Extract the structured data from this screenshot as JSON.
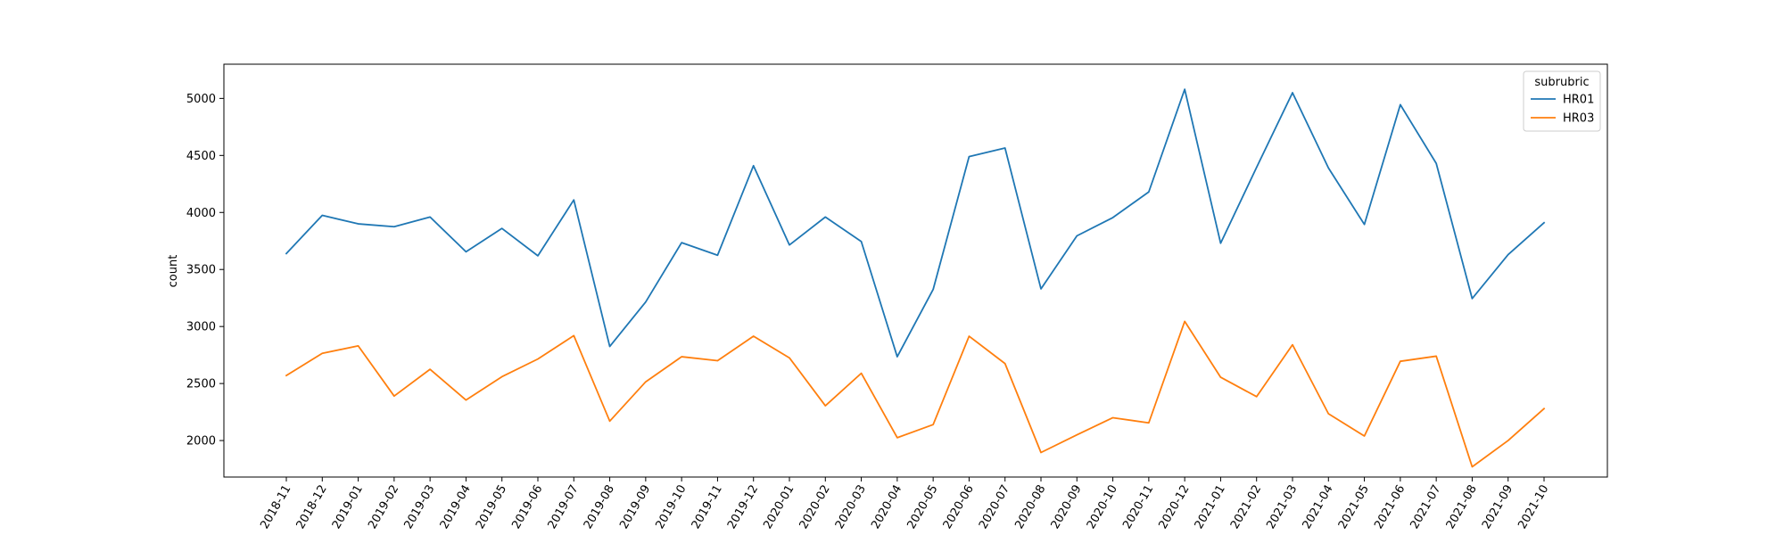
{
  "chart_data": {
    "type": "line",
    "title": "",
    "xlabel": "",
    "ylabel": "count",
    "categories": [
      "2018-11",
      "2018-12",
      "2019-01",
      "2019-02",
      "2019-03",
      "2019-04",
      "2019-05",
      "2019-06",
      "2019-07",
      "2019-08",
      "2019-09",
      "2019-10",
      "2019-11",
      "2019-12",
      "2020-01",
      "2020-02",
      "2020-03",
      "2020-04",
      "2020-05",
      "2020-06",
      "2020-07",
      "2020-08",
      "2020-09",
      "2020-10",
      "2020-11",
      "2020-12",
      "2021-01",
      "2021-02",
      "2021-03",
      "2021-04",
      "2021-05",
      "2021-06",
      "2021-07",
      "2021-08",
      "2021-09",
      "2021-10"
    ],
    "series": [
      {
        "name": "HR01",
        "color": "#1f77b4",
        "values": [
          3640,
          3975,
          3900,
          3875,
          3960,
          3655,
          3860,
          3620,
          4110,
          2825,
          3215,
          3735,
          3625,
          4410,
          3715,
          3960,
          3745,
          2735,
          3325,
          4490,
          4565,
          3330,
          3795,
          3955,
          4180,
          5080,
          3730,
          4395,
          5050,
          4390,
          3895,
          4945,
          4430,
          3245,
          3630,
          3910
        ]
      },
      {
        "name": "HR03",
        "color": "#ff7f0e",
        "values": [
          2570,
          2765,
          2830,
          2390,
          2625,
          2355,
          2560,
          2715,
          2920,
          2170,
          2515,
          2735,
          2700,
          2915,
          2725,
          2305,
          2590,
          2025,
          2140,
          2915,
          2675,
          1895,
          2050,
          2200,
          2155,
          3045,
          2555,
          2385,
          2840,
          2235,
          2040,
          2695,
          2740,
          1770,
          2000,
          2280
        ]
      }
    ],
    "yticks": [
      2000,
      2500,
      3000,
      3500,
      4000,
      4500,
      5000
    ],
    "ylim": [
      1680,
      5300
    ],
    "legend": {
      "title": "subrubric",
      "position": "top-right"
    },
    "grid": false
  }
}
